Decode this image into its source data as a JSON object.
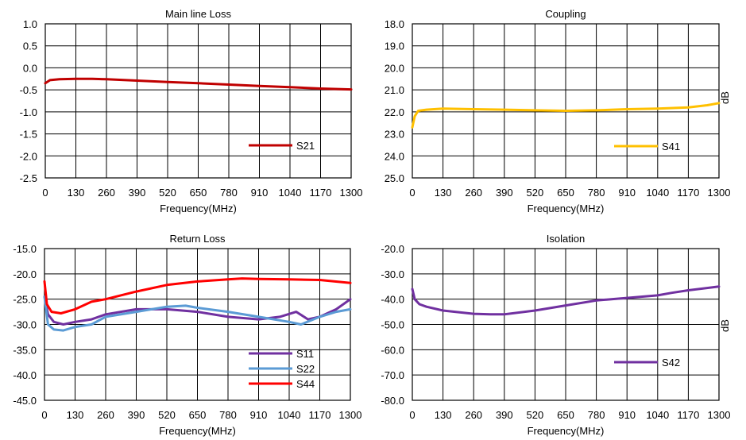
{
  "chart_data": [
    {
      "type": "line",
      "title": "Main line Loss",
      "xlabel": "Frequency(MHz)",
      "ylabel": "",
      "xlim": [
        0,
        1300
      ],
      "ylim": [
        -2.5,
        1.0
      ],
      "y_reversed": false,
      "grid": true,
      "legend_position": "lower-right",
      "x_ticks": [
        0,
        130,
        260,
        390,
        520,
        650,
        780,
        910,
        1040,
        1170,
        1300
      ],
      "x_tick_labels": [
        "0",
        "130",
        "260",
        "390",
        "520",
        "650",
        "780",
        "910",
        "1040",
        "1170",
        "1300"
      ],
      "y_ticks": [
        1.0,
        0.5,
        0.0,
        -0.5,
        -1.0,
        -1.5,
        -2.0,
        -2.5
      ],
      "y_tick_labels": [
        "1.0",
        "0.5",
        "0.0",
        "-0.5",
        "-1.0",
        "-1.5",
        "-2.0",
        "-2.5"
      ],
      "series": [
        {
          "name": "S21",
          "color": "#c00000",
          "x": [
            0,
            20,
            60,
            130,
            200,
            260,
            390,
            520,
            650,
            780,
            910,
            1040,
            1170,
            1300
          ],
          "y": [
            -0.35,
            -0.28,
            -0.26,
            -0.25,
            -0.25,
            -0.26,
            -0.29,
            -0.32,
            -0.35,
            -0.38,
            -0.41,
            -0.44,
            -0.47,
            -0.49
          ]
        }
      ]
    },
    {
      "type": "line",
      "title": "Coupling",
      "xlabel": "Frequency(MHz)",
      "ylabel": "dB",
      "xlim": [
        0,
        1300
      ],
      "ylim": [
        18.0,
        25.0
      ],
      "y_reversed": true,
      "grid": true,
      "legend_position": "lower-right",
      "x_ticks": [
        0,
        130,
        260,
        390,
        520,
        650,
        780,
        910,
        1040,
        1170,
        1300
      ],
      "x_tick_labels": [
        "0",
        "130",
        "260",
        "390",
        "520",
        "650",
        "780",
        "910",
        "1040",
        "1170",
        "1300"
      ],
      "y_ticks": [
        18.0,
        19.0,
        20.0,
        21.0,
        22.0,
        23.0,
        24.0,
        25.0
      ],
      "y_tick_labels": [
        "18.0",
        "19.0",
        "20.0",
        "21.0",
        "22.0",
        "23.0",
        "24.0",
        "25.0"
      ],
      "series": [
        {
          "name": "S41",
          "color": "#ffc000",
          "x": [
            0,
            10,
            25,
            60,
            130,
            260,
            390,
            520,
            650,
            780,
            910,
            1040,
            1170,
            1250,
            1300
          ],
          "y": [
            22.7,
            22.2,
            21.95,
            21.9,
            21.85,
            21.88,
            21.9,
            21.93,
            21.95,
            21.93,
            21.88,
            21.85,
            21.8,
            21.7,
            21.6
          ]
        }
      ]
    },
    {
      "type": "line",
      "title": "Return Loss",
      "xlabel": "Frequency(MHz)",
      "ylabel": "",
      "xlim": [
        0,
        1300
      ],
      "ylim": [
        -45.0,
        -15.0
      ],
      "y_reversed": false,
      "grid": true,
      "legend_position": "lower-right",
      "x_ticks": [
        0,
        130,
        260,
        390,
        520,
        650,
        780,
        910,
        1040,
        1170,
        1300
      ],
      "x_tick_labels": [
        "0",
        "130",
        "260",
        "390",
        "520",
        "650",
        "780",
        "910",
        "1040",
        "1170",
        "1300"
      ],
      "y_ticks": [
        -15.0,
        -20.0,
        -25.0,
        -30.0,
        -35.0,
        -40.0,
        -45.0
      ],
      "y_tick_labels": [
        "-15.0",
        "-20.0",
        "-25.0",
        "-30.0",
        "-35.0",
        "-40.0",
        "-45.0"
      ],
      "series": [
        {
          "name": "S11",
          "color": "#7030a0",
          "x": [
            0,
            15,
            40,
            80,
            130,
            200,
            260,
            390,
            520,
            650,
            780,
            910,
            1000,
            1070,
            1120,
            1170,
            1240,
            1300
          ],
          "y": [
            -24.5,
            -28.0,
            -29.5,
            -30.0,
            -29.5,
            -29.0,
            -28.0,
            -27.0,
            -27.0,
            -27.5,
            -28.5,
            -29.0,
            -28.5,
            -27.5,
            -29.0,
            -28.5,
            -27.0,
            -25.0
          ]
        },
        {
          "name": "S22",
          "color": "#5b9bd5",
          "x": [
            0,
            15,
            40,
            80,
            130,
            200,
            260,
            390,
            520,
            600,
            650,
            780,
            910,
            1040,
            1090,
            1170,
            1240,
            1300
          ],
          "y": [
            -24.5,
            -30.0,
            -31.0,
            -31.2,
            -30.5,
            -30.0,
            -28.5,
            -27.5,
            -26.5,
            -26.3,
            -26.7,
            -27.5,
            -28.5,
            -29.5,
            -30.0,
            -28.5,
            -27.5,
            -27.0
          ]
        },
        {
          "name": "S44",
          "color": "#ff0000",
          "x": [
            0,
            10,
            30,
            70,
            130,
            200,
            260,
            390,
            520,
            650,
            780,
            840,
            910,
            1040,
            1170,
            1300
          ],
          "y": [
            -21.5,
            -26.0,
            -27.5,
            -27.8,
            -27.0,
            -25.5,
            -25.0,
            -23.5,
            -22.2,
            -21.5,
            -21.1,
            -20.9,
            -21.0,
            -21.1,
            -21.2,
            -21.8
          ]
        }
      ]
    },
    {
      "type": "line",
      "title": "Isolation",
      "xlabel": "Frequency(MHz)",
      "ylabel": "dB",
      "xlim": [
        0,
        1300
      ],
      "ylim": [
        -80.0,
        -20.0
      ],
      "y_reversed": false,
      "grid": true,
      "legend_position": "lower-right",
      "x_ticks": [
        0,
        130,
        260,
        390,
        520,
        650,
        780,
        910,
        1040,
        1170,
        1300
      ],
      "x_tick_labels": [
        "0",
        "130",
        "260",
        "390",
        "520",
        "650",
        "780",
        "910",
        "1040",
        "1170",
        "1300"
      ],
      "y_ticks": [
        -20.0,
        -30.0,
        -40.0,
        -50.0,
        -60.0,
        -70.0,
        -80.0
      ],
      "y_tick_labels": [
        "-20.0",
        "-30.0",
        "-40.0",
        "-50.0",
        "-60.0",
        "-70.0",
        "-80.0"
      ],
      "series": [
        {
          "name": "S42",
          "color": "#7030a0",
          "x": [
            0,
            10,
            30,
            60,
            130,
            260,
            330,
            390,
            520,
            650,
            780,
            910,
            1040,
            1100,
            1170,
            1300
          ],
          "y": [
            -36.0,
            -40.0,
            -42.0,
            -43.0,
            -44.5,
            -45.8,
            -46.0,
            -46.0,
            -44.5,
            -42.5,
            -40.5,
            -39.5,
            -38.5,
            -37.5,
            -36.5,
            -35.0
          ]
        }
      ]
    }
  ]
}
